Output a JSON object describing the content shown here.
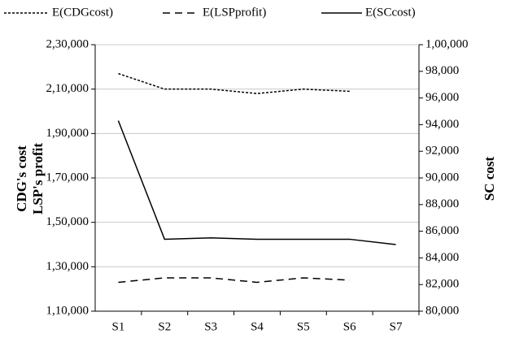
{
  "chart_data": {
    "type": "line",
    "y_label": [
      "CDG's cost",
      "LSP's profit"
    ],
    "y2_label": "SC cost",
    "categories": [
      "S1",
      "S2",
      "S3",
      "S4",
      "S5",
      "S6",
      "S7"
    ],
    "series": [
      {
        "name": "E(CDGcost)",
        "color": "#000000",
        "line_style": "dotted",
        "axis": "y",
        "values": [
          217000,
          210000,
          210000,
          208000,
          210000,
          209000,
          null
        ]
      },
      {
        "name": "E(LSPprofit)",
        "color": "#000000",
        "line_style": "dashed",
        "axis": "y",
        "values": [
          123000,
          125000,
          125000,
          123000,
          125000,
          124000,
          null
        ]
      },
      {
        "name": "E(SCcost)",
        "color": "#000000",
        "line_style": "solid",
        "axis": "y2",
        "values": [
          94300,
          85400,
          85500,
          85400,
          85400,
          85400,
          85000
        ]
      }
    ],
    "ylim": [
      110000,
      230000
    ],
    "yticks": [
      {
        "value": 110000,
        "label": "1,10,000"
      },
      {
        "value": 130000,
        "label": "1,30,000"
      },
      {
        "value": 150000,
        "label": "1,50,000"
      },
      {
        "value": 170000,
        "label": "1,70,000"
      },
      {
        "value": 190000,
        "label": "1,90,000"
      },
      {
        "value": 210000,
        "label": "2,10,000"
      },
      {
        "value": 230000,
        "label": "2,30,000"
      }
    ],
    "y2lim": [
      80000,
      100000
    ],
    "y2ticks": [
      {
        "value": 80000,
        "label": "80,000"
      },
      {
        "value": 82000,
        "label": "82,000"
      },
      {
        "value": 84000,
        "label": "84,000"
      },
      {
        "value": 86000,
        "label": "86,000"
      },
      {
        "value": 88000,
        "label": "88,000"
      },
      {
        "value": 90000,
        "label": "90,000"
      },
      {
        "value": 92000,
        "label": "92,000"
      },
      {
        "value": 94000,
        "label": "94,000"
      },
      {
        "value": 96000,
        "label": "96,000"
      },
      {
        "value": 98000,
        "label": "98,000"
      },
      {
        "value": 100000,
        "label": "1,00,000"
      }
    ],
    "grid": true,
    "legend": "top"
  }
}
